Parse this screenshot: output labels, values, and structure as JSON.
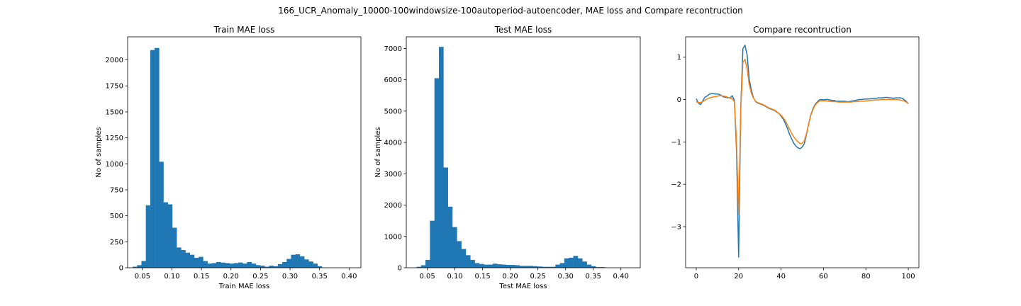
{
  "suptitle": "166_UCR_Anomaly_10000-100windowsize-100autoperiod-autoencoder, MAE loss and Compare recontruction",
  "chart_data": [
    {
      "type": "bar",
      "title": "Train MAE loss",
      "xlabel": "Train MAE loss",
      "ylabel": "No of samples",
      "xlim": [
        0.025,
        0.42
      ],
      "ylim": [
        0,
        2222
      ],
      "xticks": [
        0.05,
        0.1,
        0.15,
        0.2,
        0.25,
        0.3,
        0.35,
        0.4
      ],
      "xtick_labels": [
        "0.05",
        "0.10",
        "0.15",
        "0.20",
        "0.25",
        "0.30",
        "0.35",
        "0.40"
      ],
      "yticks": [
        0,
        250,
        500,
        750,
        1000,
        1250,
        1500,
        1750,
        2000
      ],
      "ytick_labels": [
        "0",
        "250",
        "500",
        "750",
        "1000",
        "1250",
        "1500",
        "1750",
        "2000"
      ],
      "bin_start": 0.0335,
      "bin_width": 0.00745,
      "values": [
        10,
        25,
        65,
        600,
        2095,
        2115,
        1020,
        630,
        610,
        385,
        195,
        170,
        145,
        125,
        95,
        105,
        65,
        40,
        45,
        55,
        50,
        45,
        40,
        45,
        50,
        40,
        55,
        40,
        25,
        20,
        10,
        20,
        15,
        35,
        55,
        85,
        125,
        130,
        110,
        80,
        60,
        40,
        15
      ],
      "color": "#1f77b4"
    },
    {
      "type": "bar",
      "title": "Test MAE loss",
      "xlabel": "Test MAE loss",
      "ylabel": "No of samples",
      "xlim": [
        0.012,
        0.435
      ],
      "ylim": [
        0,
        7371
      ],
      "xticks": [
        0.05,
        0.1,
        0.15,
        0.2,
        0.25,
        0.3,
        0.35,
        0.4
      ],
      "xtick_labels": [
        "0.05",
        "0.10",
        "0.15",
        "0.20",
        "0.25",
        "0.30",
        "0.35",
        "0.40"
      ],
      "yticks": [
        0,
        1000,
        2000,
        3000,
        4000,
        5000,
        6000,
        7000
      ],
      "ytick_labels": [
        "0",
        "1000",
        "2000",
        "3000",
        "4000",
        "5000",
        "6000",
        "7000"
      ],
      "bin_start": 0.0305,
      "bin_width": 0.0081,
      "values": [
        30,
        80,
        250,
        1500,
        6050,
        7050,
        3200,
        1950,
        1300,
        850,
        600,
        400,
        250,
        150,
        120,
        100,
        100,
        130,
        110,
        100,
        90,
        90,
        80,
        60,
        60,
        60,
        50,
        40,
        30,
        30,
        30,
        100,
        150,
        300,
        320,
        380,
        300,
        200,
        100,
        50,
        20,
        20
      ],
      "color": "#1f77b4"
    },
    {
      "type": "line",
      "title": "Compare recontruction",
      "xlabel": "",
      "ylabel": "",
      "xlim": [
        -5,
        105
      ],
      "ylim": [
        -3.97,
        1.48
      ],
      "xticks": [
        0,
        20,
        40,
        60,
        80,
        100
      ],
      "xtick_labels": [
        "0",
        "20",
        "40",
        "60",
        "80",
        "100"
      ],
      "yticks": [
        -3,
        -2,
        -1,
        0,
        1
      ],
      "ytick_labels": [
        "−3",
        "−2",
        "−1",
        "0",
        "1"
      ],
      "series": [
        {
          "color": "#1f77b4",
          "values": [
            0.02,
            -0.08,
            -0.12,
            -0.04,
            0.05,
            0.08,
            0.12,
            0.14,
            0.14,
            0.13,
            0.13,
            0.12,
            0.09,
            0.06,
            0.05,
            0.04,
            0.04,
            0.09,
            -0.02,
            -1.2,
            -3.72,
            -0.2,
            1.2,
            1.28,
            1.05,
            0.48,
            0.22,
            0.04,
            -0.05,
            -0.08,
            -0.1,
            -0.12,
            -0.14,
            -0.17,
            -0.2,
            -0.22,
            -0.24,
            -0.26,
            -0.3,
            -0.33,
            -0.39,
            -0.46,
            -0.56,
            -0.68,
            -0.82,
            -0.93,
            -1.03,
            -1.1,
            -1.14,
            -1.16,
            -1.12,
            -1.04,
            -0.82,
            -0.58,
            -0.37,
            -0.22,
            -0.12,
            -0.06,
            -0.01,
            0.0,
            -0.01,
            0.0,
            0.0,
            -0.01,
            -0.02,
            -0.02,
            -0.04,
            -0.04,
            -0.04,
            -0.04,
            -0.04,
            -0.05,
            -0.05,
            -0.04,
            -0.03,
            -0.02,
            -0.01,
            0.0,
            0.0,
            0.01,
            0.01,
            0.01,
            0.02,
            0.02,
            0.03,
            0.03,
            0.04,
            0.04,
            0.04,
            0.05,
            0.05,
            0.04,
            0.04,
            0.03,
            0.04,
            0.04,
            0.04,
            0.03,
            0.0,
            -0.04,
            -0.1
          ]
        },
        {
          "color": "#ff7f0e",
          "values": [
            -0.05,
            -0.07,
            -0.07,
            -0.05,
            -0.02,
            0.01,
            0.03,
            0.05,
            0.06,
            0.07,
            0.08,
            0.09,
            0.09,
            0.08,
            0.07,
            0.05,
            0.03,
            0.02,
            -0.05,
            -1.0,
            -2.72,
            -0.25,
            0.88,
            0.95,
            0.72,
            0.35,
            0.15,
            0.03,
            -0.04,
            -0.07,
            -0.09,
            -0.11,
            -0.13,
            -0.16,
            -0.19,
            -0.21,
            -0.23,
            -0.25,
            -0.29,
            -0.33,
            -0.37,
            -0.43,
            -0.5,
            -0.6,
            -0.7,
            -0.8,
            -0.88,
            -0.95,
            -1.0,
            -1.04,
            -1.03,
            -0.97,
            -0.8,
            -0.58,
            -0.38,
            -0.24,
            -0.14,
            -0.08,
            -0.04,
            -0.03,
            -0.03,
            -0.03,
            -0.04,
            -0.04,
            -0.05,
            -0.05,
            -0.05,
            -0.06,
            -0.06,
            -0.06,
            -0.06,
            -0.06,
            -0.06,
            -0.06,
            -0.05,
            -0.05,
            -0.05,
            -0.04,
            -0.04,
            -0.04,
            -0.03,
            -0.03,
            -0.02,
            -0.02,
            -0.01,
            -0.01,
            -0.01,
            0.0,
            0.0,
            0.0,
            0.0,
            0.0,
            0.0,
            0.0,
            0.0,
            0.0,
            -0.01,
            -0.02,
            -0.03,
            -0.06,
            -0.09
          ]
        }
      ]
    }
  ]
}
